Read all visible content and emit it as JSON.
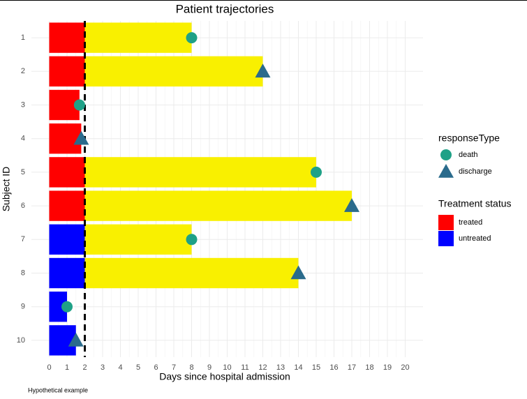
{
  "chart_data": {
    "type": "swimmer",
    "title": "Patient trajectories",
    "x_label": "Days since hospital admission",
    "y_label": "Subject ID",
    "caption": "Hypothetical example",
    "categories": [
      "1",
      "2",
      "3",
      "4",
      "5",
      "6",
      "7",
      "8",
      "9",
      "10"
    ],
    "status": [
      "treated",
      "treated",
      "treated",
      "treated",
      "treated",
      "treated",
      "untreated",
      "untreated",
      "untreated",
      "untreated"
    ],
    "treatment_days": [
      2,
      2,
      1.7,
      1.8,
      2,
      2,
      2,
      2,
      1,
      1.5
    ],
    "followup_days": [
      6,
      10,
      0,
      0,
      13,
      15,
      6,
      12,
      0,
      0
    ],
    "followup_color": "#f9f000",
    "response_type": [
      "death",
      "discharge",
      "death",
      "discharge",
      "death",
      "discharge",
      "death",
      "discharge",
      "death",
      "discharge"
    ],
    "response_day": [
      8,
      12,
      1.7,
      1.8,
      15,
      17,
      8,
      14,
      1,
      1.5
    ],
    "vline": 2,
    "xlim": [
      -1,
      21
    ],
    "xticks": [
      0,
      1,
      2,
      3,
      4,
      5,
      6,
      7,
      8,
      9,
      10,
      11,
      12,
      13,
      14,
      15,
      16,
      17,
      18,
      19,
      20
    ],
    "grid": true,
    "response_legend": {
      "title": "responseType",
      "items": [
        {
          "label": "death",
          "color": "#1fa187",
          "shape": "circle"
        },
        {
          "label": "discharge",
          "color": "#2a6b8c",
          "shape": "triangle"
        }
      ]
    },
    "status_legend": {
      "title": "Treatment status",
      "items": [
        {
          "label": "treated",
          "color": "#ff0000"
        },
        {
          "label": "untreated",
          "color": "#0000ff"
        }
      ]
    }
  }
}
